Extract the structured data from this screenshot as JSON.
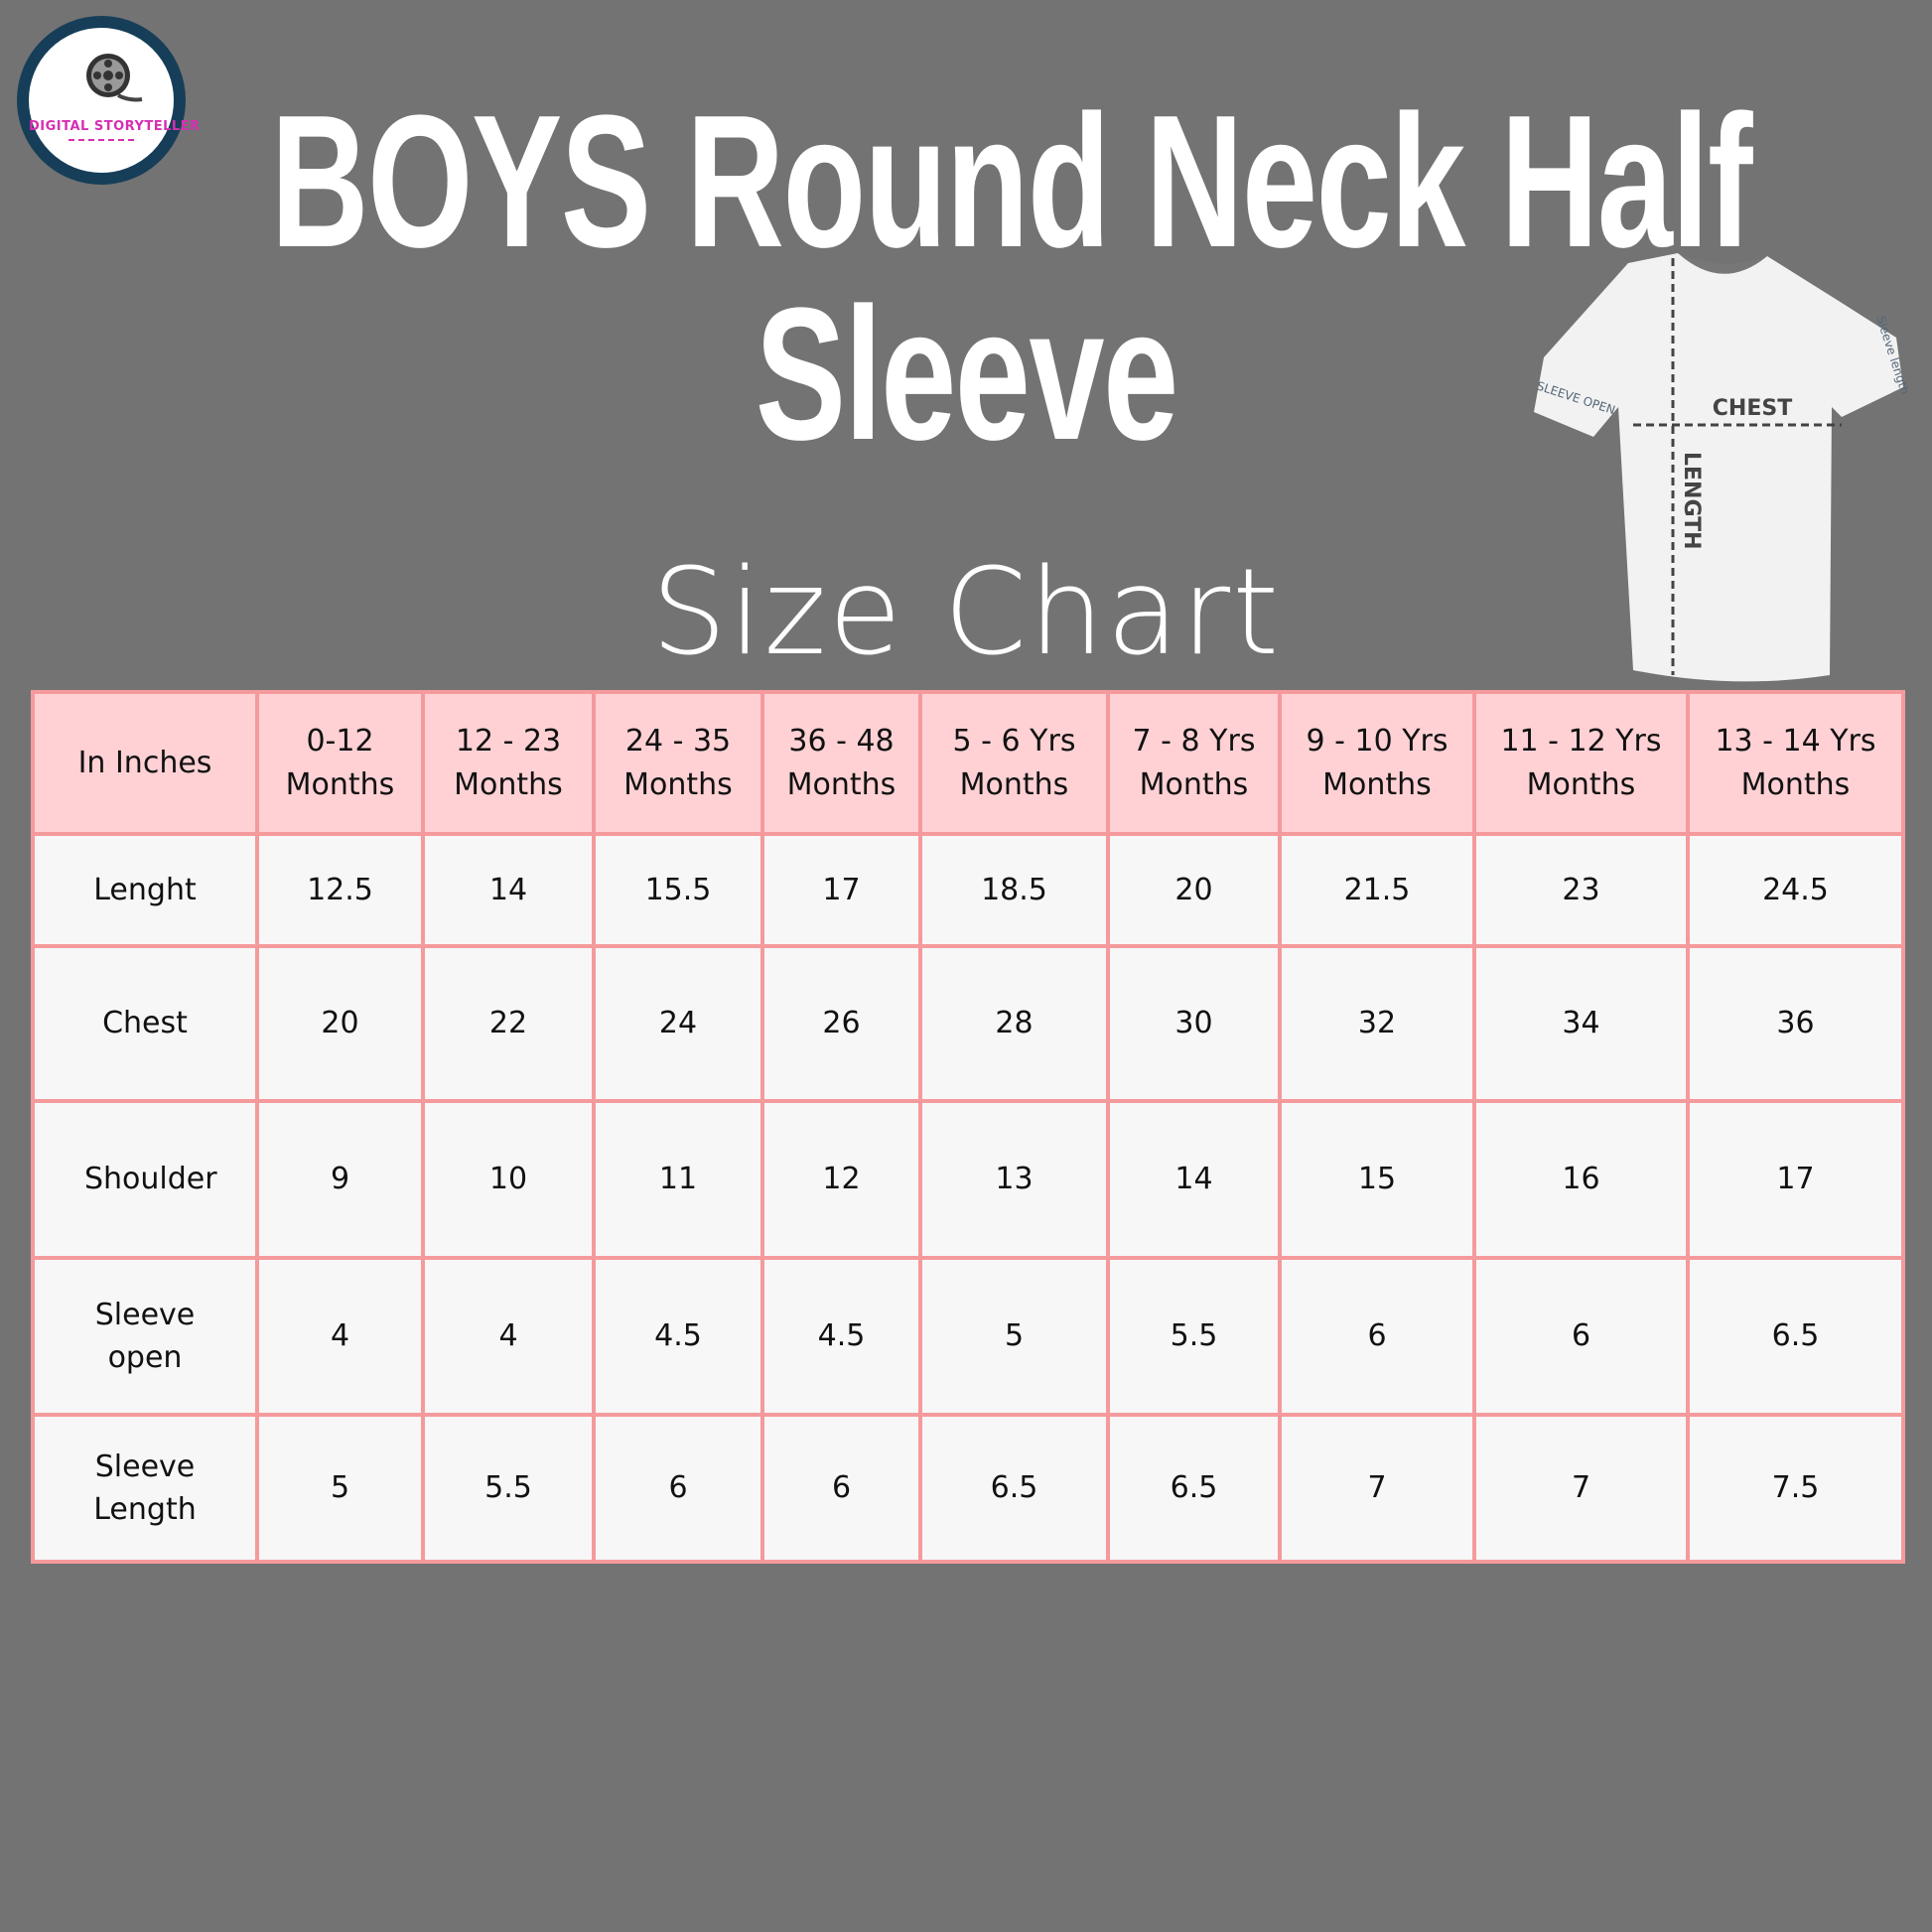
{
  "logo": {
    "text": "DIGITAL STORYTELLER"
  },
  "title": {
    "line1": "BOYS Round Neck Half",
    "line2": "Sleeve"
  },
  "subtitle": "Size Chart",
  "diagram": {
    "chest": "CHEST",
    "length": "LENGTH",
    "sleeve_open": "SLEEVE OPEN",
    "sleeve_length": "Sleeve length"
  },
  "colors": {
    "background": "#737373",
    "header_fill": "#ffd1d4",
    "border": "#f59a9c",
    "cell_fill": "#f7f7f7"
  },
  "table": {
    "headers": [
      "In Inches",
      "0-12 Months",
      "12 - 23 Months",
      "24 - 35 Months",
      "36 - 48 Months",
      "5 - 6 Yrs Months",
      "7 - 8 Yrs Months",
      "9 - 10 Yrs Months",
      "11 - 12  Yrs Months",
      "13 - 14 Yrs Months"
    ],
    "rows": [
      [
        "Lenght",
        "12.5",
        "14",
        "15.5",
        "17",
        "18.5",
        "20",
        "21.5",
        "23",
        "24.5"
      ],
      [
        "Chest",
        "20",
        "22",
        "24",
        "26",
        "28",
        "30",
        "32",
        "34",
        "36"
      ],
      [
        "Shoulder",
        "9",
        "10",
        "11",
        "12",
        "13",
        "14",
        "15",
        "16",
        "17"
      ],
      [
        "Sleeve open",
        "4",
        "4",
        "4.5",
        "4.5",
        "5",
        "5.5",
        "6",
        "6",
        "6.5"
      ],
      [
        "Sleeve Length",
        "5",
        "5.5",
        "6",
        "6",
        "6.5",
        "6.5",
        "7",
        "7",
        "7.5"
      ]
    ]
  }
}
